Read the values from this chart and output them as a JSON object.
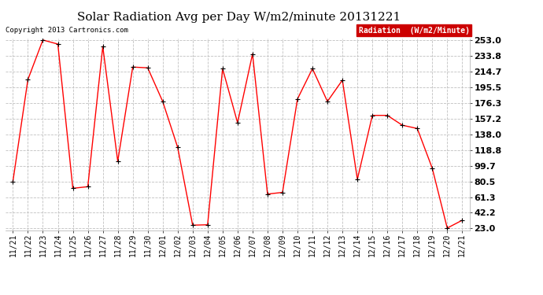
{
  "title": "Solar Radiation Avg per Day W/m2/minute 20131221",
  "copyright_text": "Copyright 2013 Cartronics.com",
  "legend_label": "Radiation  (W/m2/Minute)",
  "x_labels": [
    "11/21",
    "11/22",
    "11/23",
    "11/24",
    "11/25",
    "11/26",
    "11/27",
    "11/28",
    "11/29",
    "11/30",
    "12/01",
    "12/02",
    "12/03",
    "12/04",
    "12/05",
    "12/06",
    "12/07",
    "12/08",
    "12/09",
    "12/10",
    "12/11",
    "12/12",
    "12/13",
    "12/14",
    "12/15",
    "12/16",
    "12/17",
    "12/18",
    "12/19",
    "12/20",
    "12/21"
  ],
  "y_values": [
    80.5,
    204.7,
    253.0,
    248.0,
    72.0,
    74.0,
    245.0,
    105.0,
    220.0,
    219.0,
    178.0,
    122.0,
    27.0,
    27.5,
    218.0,
    152.0,
    236.0,
    65.0,
    67.0,
    181.0,
    218.0,
    178.0,
    204.0,
    83.0,
    161.0,
    161.0,
    149.0,
    145.0,
    96.5,
    23.5,
    33.0
  ],
  "y_ticks": [
    23.0,
    42.2,
    61.3,
    80.5,
    99.7,
    118.8,
    138.0,
    157.2,
    176.3,
    195.5,
    214.7,
    233.8,
    253.0
  ],
  "y_tick_labels": [
    "23.0",
    "42.2",
    "61.3",
    "80.5",
    "99.7",
    "118.8",
    "138.0",
    "157.2",
    "176.3",
    "195.5",
    "214.7",
    "233.8",
    "253.0"
  ],
  "y_min": 23.0,
  "y_max": 253.0,
  "line_color": "#ff0000",
  "marker_color": "#000000",
  "bg_color": "#ffffff",
  "plot_bg_color": "#ffffff",
  "grid_color": "#c0c0c0",
  "title_fontsize": 11,
  "copyright_fontsize": 6.5,
  "tick_fontsize": 7,
  "legend_fontsize": 7,
  "legend_bg_color": "#cc0000",
  "legend_text_color": "#ffffff"
}
